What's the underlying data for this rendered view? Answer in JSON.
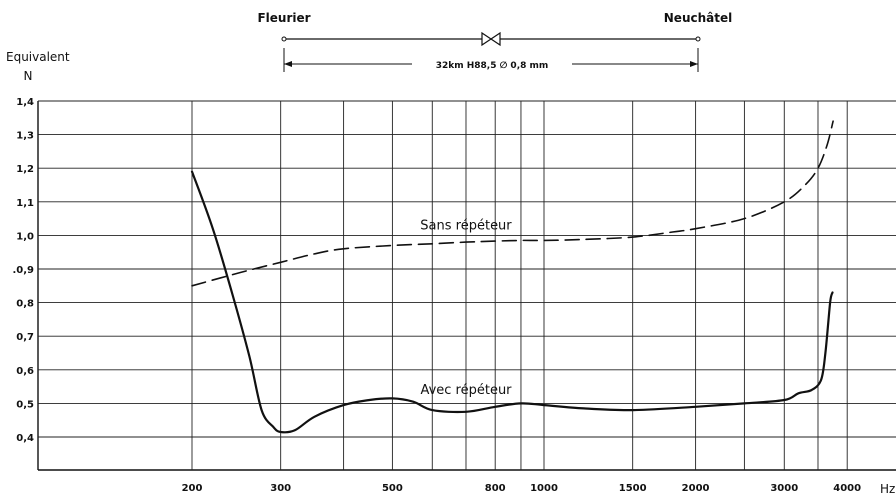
{
  "chart_data": {
    "type": "line",
    "ylabel_line1": "Equivalent",
    "ylabel_line2": "N",
    "xunit": "Hz",
    "x_scale": "log",
    "xlim": [
      200,
      4100
    ],
    "ylim": [
      0.34,
      1.4
    ],
    "grid": true,
    "x_gridlines": [
      200,
      300,
      400,
      500,
      600,
      700,
      800,
      900,
      1000,
      1500,
      2000,
      2500,
      3000,
      3500,
      4000
    ],
    "x_ticks": [
      {
        "value": 200,
        "label": "200"
      },
      {
        "value": 300,
        "label": "300"
      },
      {
        "value": 500,
        "label": "500"
      },
      {
        "value": 800,
        "label": "800"
      },
      {
        "value": 1000,
        "label": "1000"
      },
      {
        "value": 1500,
        "label": "1500"
      },
      {
        "value": 2000,
        "label": "2000"
      },
      {
        "value": 3000,
        "label": "3000"
      },
      {
        "value": 4000,
        "label": "4000"
      }
    ],
    "y_ticks": [
      {
        "value": 1.4,
        "label": "1,4"
      },
      {
        "value": 1.3,
        "label": "1,3"
      },
      {
        "value": 1.2,
        "label": "1,2"
      },
      {
        "value": 1.1,
        "label": "1,1"
      },
      {
        "value": 1.0,
        "label": "1,0"
      },
      {
        "value": 0.9,
        "label": ".0,9"
      },
      {
        "value": 0.8,
        "label": "0,8"
      },
      {
        "value": 0.7,
        "label": "0,7"
      },
      {
        "value": 0.6,
        "label": "0,6"
      },
      {
        "value": 0.5,
        "label": "0,5"
      },
      {
        "value": 0.4,
        "label": "0,4"
      }
    ],
    "series": [
      {
        "name": "Sans répéteur",
        "style": "dashed",
        "points": [
          [
            200,
            0.85
          ],
          [
            250,
            0.89
          ],
          [
            300,
            0.92
          ],
          [
            350,
            0.945
          ],
          [
            400,
            0.96
          ],
          [
            500,
            0.97
          ],
          [
            600,
            0.975
          ],
          [
            700,
            0.98
          ],
          [
            800,
            0.983
          ],
          [
            900,
            0.985
          ],
          [
            1000,
            0.985
          ],
          [
            1200,
            0.988
          ],
          [
            1500,
            0.995
          ],
          [
            1800,
            1.01
          ],
          [
            2000,
            1.02
          ],
          [
            2500,
            1.05
          ],
          [
            3000,
            1.1
          ],
          [
            3300,
            1.15
          ],
          [
            3500,
            1.2
          ],
          [
            3650,
            1.27
          ],
          [
            3750,
            1.34
          ]
        ]
      },
      {
        "name": "Avec répéteur",
        "style": "solid",
        "points": [
          [
            200,
            1.19
          ],
          [
            220,
            1.02
          ],
          [
            240,
            0.83
          ],
          [
            260,
            0.64
          ],
          [
            275,
            0.48
          ],
          [
            290,
            0.43
          ],
          [
            300,
            0.415
          ],
          [
            320,
            0.42
          ],
          [
            350,
            0.46
          ],
          [
            400,
            0.495
          ],
          [
            450,
            0.51
          ],
          [
            500,
            0.515
          ],
          [
            550,
            0.505
          ],
          [
            600,
            0.48
          ],
          [
            700,
            0.475
          ],
          [
            800,
            0.49
          ],
          [
            900,
            0.5
          ],
          [
            1000,
            0.495
          ],
          [
            1200,
            0.485
          ],
          [
            1500,
            0.48
          ],
          [
            2000,
            0.49
          ],
          [
            2500,
            0.5
          ],
          [
            3000,
            0.51
          ],
          [
            3200,
            0.53
          ],
          [
            3400,
            0.54
          ],
          [
            3550,
            0.57
          ],
          [
            3620,
            0.65
          ],
          [
            3700,
            0.8
          ],
          [
            3740,
            0.83
          ]
        ]
      }
    ],
    "annotations": [
      {
        "text": "Sans répéteur",
        "x": 700,
        "y": 1.0
      },
      {
        "text": "Avec répéteur",
        "x": 700,
        "y": 0.51
      }
    ]
  },
  "line_diagram": {
    "left_label": "Fleurier",
    "right_label": "Neuchâtel",
    "caption": "32km  H88,5  ∅ 0,8 mm"
  }
}
